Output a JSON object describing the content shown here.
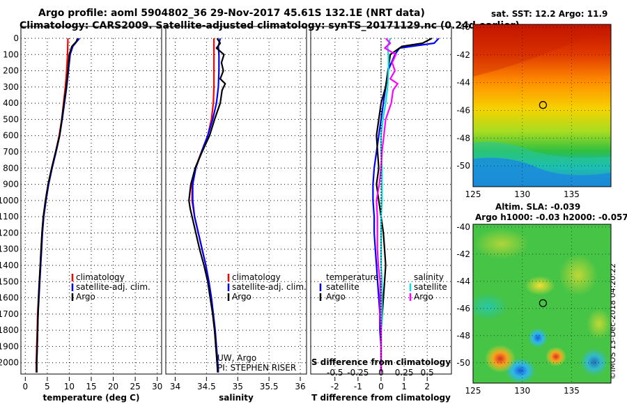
{
  "header": {
    "title_line1": "Argo profile: aoml 5904802_36 29-Nov-2017 45.61S 132.1E (NRT data)",
    "title_line2": "Climatology: CARS2009. Satellite-adjusted climatology: synTS_20171129.nc (0.24d earlier)"
  },
  "colors": {
    "climatology": "#ff0000",
    "satellite_adj": "#0000ff",
    "argo": "#000000",
    "salinity_satellite": "#00e0e0",
    "salinity_argo": "#ff00ff"
  },
  "chart_data": [
    {
      "id": "temperature",
      "type": "line",
      "xlabel": "temperature (deg C)",
      "ylabel": "",
      "xlim": [
        -1,
        31
      ],
      "ylim": [
        2070,
        0
      ],
      "xticks": [
        0,
        5,
        10,
        15,
        20,
        25,
        30
      ],
      "yticks": [
        0,
        100,
        200,
        300,
        400,
        500,
        600,
        700,
        800,
        900,
        1000,
        1100,
        1200,
        1300,
        1400,
        1500,
        1600,
        1700,
        1800,
        1900,
        2000
      ],
      "ytick_labels": [
        "0",
        "100",
        "200",
        "300",
        "400",
        "500",
        "600",
        "700",
        "800",
        "900",
        "1000",
        "1100",
        "1200",
        "1300",
        "1400",
        "1500",
        "1600",
        "1700",
        "1800",
        "1900",
        "2000"
      ],
      "grid": "dotted",
      "legend": [
        "climatology",
        "satellite-adj. clim.",
        "Argo"
      ],
      "series": [
        {
          "name": "climatology",
          "color": "#ff0000",
          "depth": [
            0,
            100,
            200,
            300,
            400,
            500,
            600,
            700,
            800,
            900,
            1000,
            1100,
            1200,
            1300,
            1400,
            1500,
            1600,
            1700,
            1800,
            1900,
            2000,
            2060
          ],
          "values": [
            9.7,
            9.6,
            9.4,
            9.1,
            8.7,
            8.3,
            7.7,
            6.9,
            6.0,
            5.2,
            4.6,
            4.1,
            3.8,
            3.6,
            3.4,
            3.2,
            3.0,
            2.8,
            2.7,
            2.6,
            2.5,
            2.5
          ]
        },
        {
          "name": "satellite-adj. clim.",
          "color": "#0000ff",
          "depth": [
            0,
            50,
            100,
            200,
            300,
            400,
            500,
            600,
            700,
            800,
            900,
            1000,
            1100,
            1200,
            1300,
            1400,
            1500,
            1600,
            1700,
            1800,
            1900,
            2000,
            2060
          ],
          "values": [
            12.3,
            10.8,
            10.2,
            9.8,
            9.4,
            8.9,
            8.4,
            7.8,
            7.0,
            6.1,
            5.3,
            4.7,
            4.2,
            3.9,
            3.7,
            3.5,
            3.3,
            3.1,
            2.9,
            2.8,
            2.7,
            2.6,
            2.6
          ]
        },
        {
          "name": "Argo",
          "color": "#000000",
          "depth": [
            0,
            20,
            50,
            100,
            200,
            300,
            400,
            500,
            600,
            700,
            800,
            900,
            1000,
            1100,
            1200,
            1300,
            1400,
            1500,
            1600,
            1700,
            1800,
            1900,
            2000,
            2060
          ],
          "values": [
            11.9,
            11.6,
            10.6,
            10.0,
            9.7,
            9.3,
            8.8,
            8.3,
            7.8,
            6.9,
            6.0,
            5.2,
            4.6,
            4.1,
            3.8,
            3.6,
            3.4,
            3.2,
            3.0,
            2.9,
            2.8,
            2.7,
            2.6,
            2.6
          ]
        }
      ]
    },
    {
      "id": "salinity",
      "type": "line",
      "xlabel": "salinity",
      "ylabel": "",
      "xlim": [
        33.85,
        36.1
      ],
      "ylim": [
        2070,
        0
      ],
      "xticks": [
        34,
        34.5,
        35,
        35.5,
        36
      ],
      "xtick_labels": [
        "34",
        "34.5",
        "35",
        "35.5",
        "36"
      ],
      "grid": "dotted",
      "legend": [
        "climatology",
        "satellite-adj. clim.",
        "Argo"
      ],
      "series": [
        {
          "name": "climatology",
          "color": "#ff0000",
          "depth": [
            0,
            100,
            200,
            300,
            400,
            500,
            600,
            700,
            800,
            900,
            1000,
            1100,
            1200,
            1300,
            1400,
            1500,
            1600,
            1700,
            1800,
            1900,
            2000,
            2060
          ],
          "values": [
            34.62,
            34.62,
            34.62,
            34.62,
            34.61,
            34.58,
            34.52,
            34.42,
            34.32,
            34.27,
            34.27,
            34.31,
            34.37,
            34.43,
            34.49,
            34.53,
            34.57,
            34.6,
            34.63,
            34.65,
            34.67,
            34.68
          ]
        },
        {
          "name": "satellite-adj. clim.",
          "color": "#0000ff",
          "depth": [
            0,
            50,
            100,
            200,
            300,
            400,
            500,
            600,
            700,
            800,
            900,
            1000,
            1100,
            1200,
            1300,
            1400,
            1500,
            1600,
            1700,
            1800,
            1900,
            2000,
            2060
          ],
          "values": [
            34.72,
            34.69,
            34.7,
            34.7,
            34.69,
            34.66,
            34.6,
            34.52,
            34.42,
            34.33,
            34.28,
            34.28,
            34.31,
            34.37,
            34.43,
            34.49,
            34.54,
            34.58,
            34.61,
            34.64,
            34.66,
            34.68,
            34.69
          ]
        },
        {
          "name": "Argo",
          "color": "#000000",
          "depth": [
            0,
            30,
            60,
            100,
            150,
            200,
            250,
            280,
            320,
            400,
            500,
            600,
            700,
            800,
            900,
            1000,
            1050,
            1100,
            1200,
            1300,
            1400,
            1500,
            1600,
            1700,
            1800,
            1900,
            2000,
            2060
          ],
          "values": [
            34.67,
            34.72,
            34.66,
            34.78,
            34.74,
            34.77,
            34.72,
            34.8,
            34.75,
            34.72,
            34.63,
            34.55,
            34.43,
            34.32,
            34.25,
            34.22,
            34.24,
            34.27,
            34.33,
            34.39,
            34.46,
            34.52,
            34.56,
            34.6,
            34.63,
            34.65,
            34.67,
            34.68
          ]
        }
      ]
    },
    {
      "id": "difference",
      "type": "line",
      "xlabel": "T difference from climatology",
      "xlabel_top": "S difference from climatology",
      "ylabel": "",
      "xlim": [
        -3.05,
        3.05
      ],
      "ylim": [
        2070,
        0
      ],
      "xticks": [
        -2,
        -1,
        0,
        1,
        2
      ],
      "xtick_labels": [
        "-2",
        "-1",
        "0",
        "1",
        "2"
      ],
      "sticks": [
        -2,
        -1,
        0,
        1,
        2
      ],
      "stick_labels": [
        "-0.5",
        "-0.25",
        "0",
        "0.25",
        "0.5"
      ],
      "grid": "dotted",
      "legend_left_title": "temperature",
      "legend_right_title": "salinity",
      "legend_left": [
        "satellite",
        "Argo"
      ],
      "legend_right": [
        "satellite",
        "Argo"
      ],
      "series": [
        {
          "name": "satellite",
          "group": "temperature",
          "color": "#0000ff",
          "depth": [
            0,
            30,
            60,
            100,
            200,
            300,
            400,
            500,
            600,
            700,
            800,
            900,
            1000,
            1100,
            1200,
            1300,
            1400,
            1500,
            1600,
            1700,
            1800,
            1900,
            2000,
            2060
          ],
          "values": [
            2.5,
            2.3,
            0.8,
            0.6,
            0.3,
            0.2,
            0.1,
            0.0,
            -0.1,
            -0.2,
            -0.3,
            -0.35,
            -0.35,
            -0.3,
            -0.3,
            -0.25,
            -0.2,
            -0.15,
            -0.1,
            -0.05,
            -0.05,
            0.0,
            0.0,
            0.0
          ]
        },
        {
          "name": "Argo",
          "group": "temperature",
          "color": "#000000",
          "depth": [
            0,
            30,
            50,
            80,
            100,
            200,
            300,
            400,
            500,
            600,
            700,
            800,
            900,
            1000,
            1100,
            1200,
            1300,
            1400,
            1500,
            1600,
            1700,
            1800,
            1900,
            2000,
            2060
          ],
          "values": [
            2.2,
            1.8,
            0.9,
            0.6,
            0.4,
            0.3,
            0.2,
            0.0,
            -0.1,
            -0.2,
            -0.15,
            -0.1,
            -0.2,
            -0.1,
            0.0,
            0.1,
            0.15,
            0.2,
            0.15,
            0.1,
            0.05,
            0.0,
            0.0,
            0.0,
            0.0
          ]
        },
        {
          "name": "satellite",
          "group": "salinity",
          "color": "#00e0e0",
          "depth": [
            0,
            50,
            100,
            200,
            300,
            400,
            500,
            600,
            700,
            800,
            900,
            1000,
            1100,
            1200,
            1300,
            1400,
            1500,
            1600,
            1700,
            1800,
            1900,
            2000,
            2060
          ],
          "values": [
            0.4,
            0.28,
            0.32,
            0.32,
            0.28,
            0.2,
            0.08,
            0.0,
            0.0,
            0.04,
            0.04,
            0.04,
            0.0,
            0.0,
            0.0,
            0.0,
            0.04,
            0.04,
            0.04,
            0.0,
            0.0,
            0.0,
            0.0
          ]
        },
        {
          "name": "Argo",
          "group": "salinity",
          "color": "#ff00ff",
          "depth": [
            0,
            30,
            60,
            100,
            150,
            200,
            250,
            280,
            320,
            400,
            500,
            600,
            700,
            800,
            900,
            1000,
            1100,
            1200,
            1300,
            1400,
            1500,
            1600,
            1700,
            1800,
            1900,
            2000,
            2060
          ],
          "values": [
            0.2,
            0.4,
            0.16,
            0.64,
            0.48,
            0.6,
            0.4,
            0.72,
            0.52,
            0.44,
            0.2,
            0.12,
            0.04,
            0.0,
            -0.08,
            -0.2,
            -0.16,
            -0.16,
            -0.16,
            -0.12,
            -0.04,
            -0.04,
            -0.04,
            0.0,
            0.0,
            0.0,
            0.0
          ]
        }
      ]
    },
    {
      "id": "sst_map",
      "type": "heatmap",
      "title": "sat. SST: 12.2  Argo: 11.9",
      "xlim": [
        125,
        139
      ],
      "ylim": [
        -51.5,
        -39.8
      ],
      "xticks": [
        125,
        130,
        135
      ],
      "yticks": [
        -40,
        -42,
        -44,
        -46,
        -48,
        -50
      ],
      "grid": "dotted",
      "marker": {
        "lon": 132.1,
        "lat": -45.61
      }
    },
    {
      "id": "sla_map",
      "type": "heatmap",
      "title_line1": "Altim. SLA: -0.039",
      "title_line2": "Argo h1000: -0.03  h2000: -0.057",
      "xlim": [
        125,
        139
      ],
      "ylim": [
        -51.5,
        -39.8
      ],
      "xticks": [
        125,
        130,
        135
      ],
      "yticks": [
        -40,
        -42,
        -44,
        -46,
        -48,
        -50
      ],
      "grid": "dotted",
      "marker": {
        "lon": 132.1,
        "lat": -45.61
      }
    }
  ],
  "credit": {
    "line1": "UW, Argo",
    "line2": "PI: STEPHEN RISER"
  },
  "footer": {
    "imos_stamp": "©IMOS 13-Dec-2018 04:20:22"
  }
}
